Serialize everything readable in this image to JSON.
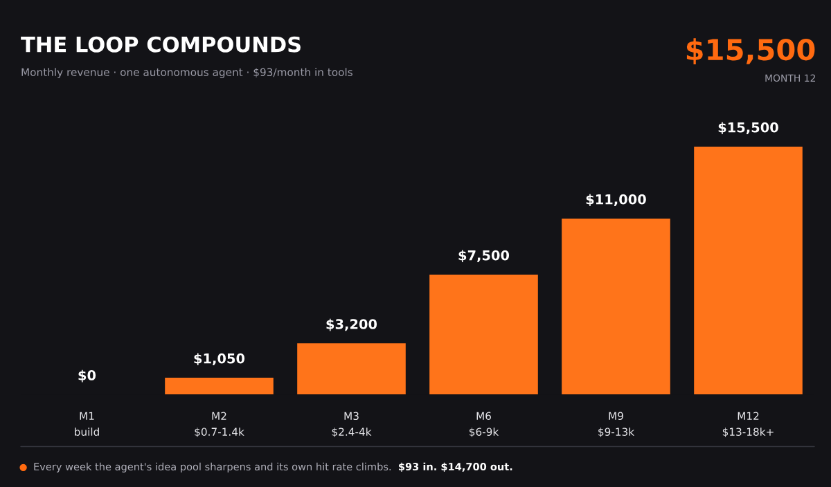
{
  "chart_data": {
    "type": "bar",
    "title": "THE LOOP COMPOUNDS",
    "subtitle": "Monthly revenue · one autonomous agent · $93/month in tools",
    "categories": [
      "M1\nbuild",
      "M2\n$0.7-1.4k",
      "M3\n$2.4-4k",
      "M6\n$6-9k",
      "M9\n$9-13k",
      "M12\n$13-18k+"
    ],
    "values": [
      0,
      1050,
      3200,
      7500,
      11000,
      15500
    ],
    "value_labels": [
      "$0",
      "$1,050",
      "$3,200",
      "$7,500",
      "$11,000",
      "$15,500"
    ],
    "color": "#ff741a",
    "annotations": [
      "$15,500",
      "MONTH 12",
      "Every week the agent's idea pool sharpens and its own hit rate climbs.",
      "$93 in. $14,700 out."
    ],
    "legend": false
  }
}
